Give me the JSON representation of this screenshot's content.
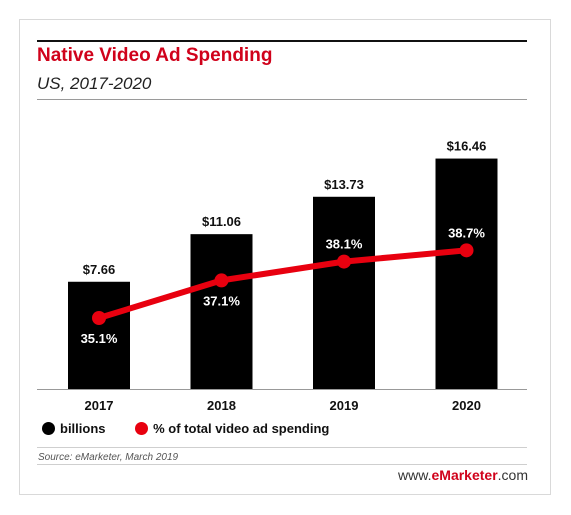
{
  "header": {
    "title": "Native Video Ad Spending",
    "subtitle": "US, 2017-2020"
  },
  "legend": [
    {
      "label": "billions",
      "color": "#000000",
      "marker": "circle"
    },
    {
      "label": "% of total video ad spending",
      "color": "#e8000f",
      "marker": "circle"
    }
  ],
  "footer": {
    "source": "Source: eMarketer, March 2019",
    "brand_prefix": "www.",
    "brand_name": "eMarketer",
    "brand_suffix": ".com"
  },
  "colors": {
    "title": "#d0021b",
    "bars": "#000000",
    "line": "#e8000f"
  },
  "chart_data": {
    "type": "bar",
    "categories": [
      "2017",
      "2018",
      "2019",
      "2020"
    ],
    "series": [
      {
        "name": "billions",
        "kind": "bar",
        "values": [
          7.66,
          11.06,
          13.73,
          16.46
        ],
        "labels": [
          "$7.66",
          "$11.06",
          "$13.73",
          "$16.46"
        ]
      },
      {
        "name": "% of total video ad spending",
        "kind": "line",
        "values": [
          35.1,
          37.1,
          38.1,
          38.7
        ],
        "labels": [
          "35.1%",
          "37.1%",
          "38.1%",
          "38.7%"
        ]
      }
    ],
    "title": "Native Video Ad Spending",
    "subtitle": "US, 2017-2020",
    "xlabel": "",
    "ylabel": "",
    "grid": false,
    "legend_position": "bottom-left"
  }
}
